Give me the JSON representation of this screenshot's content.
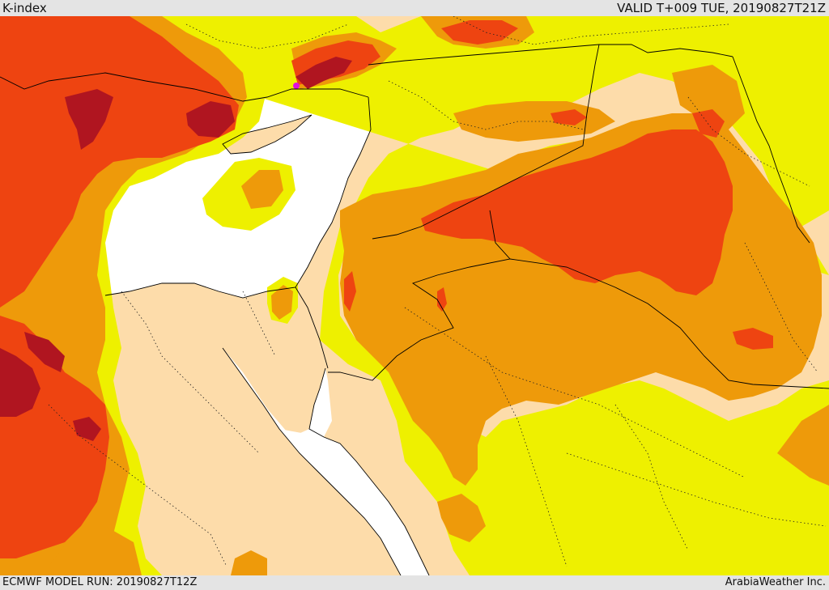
{
  "header": {
    "title": "K-index",
    "valid": "VALID T+009 TUE, 20190827T21Z"
  },
  "footer": {
    "model_run": "ECMWF MODEL RUN: 20190827T12Z",
    "credit": "ArabiaWeather Inc."
  },
  "colors": {
    "land_base": "#fddcaa",
    "sea": "#ffffff",
    "yellow": "#eef000",
    "orange": "#ee9a0a",
    "red_orange": "#ee4411",
    "dark_red": "#b01520",
    "magenta": "#e010e0",
    "border_line": "#000000"
  }
}
